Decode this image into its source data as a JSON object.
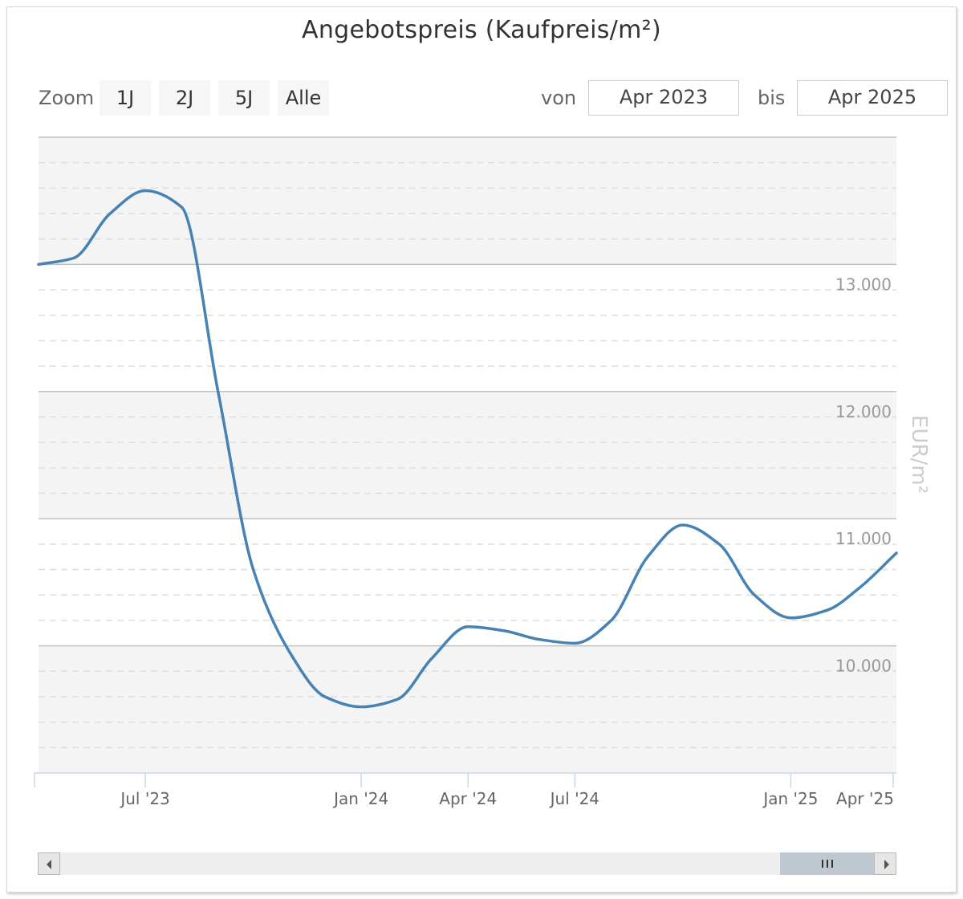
{
  "chart_data": {
    "type": "line",
    "title": "Angebotspreis (Kaufpreis/m²)",
    "ylabel": "EUR/m²",
    "xlabel": "",
    "x_range": [
      "2023-04-01",
      "2025-04-01"
    ],
    "ylim": [
      9000,
      14000
    ],
    "y_ticks": [
      10000,
      11000,
      12000,
      13000
    ],
    "y_tick_labels": [
      "10.000",
      "11.000",
      "12.000",
      "13.000"
    ],
    "x_ticks": [
      {
        "date": "2023-04-01",
        "label": ""
      },
      {
        "date": "2023-07-01",
        "label": "Jul '23"
      },
      {
        "date": "2024-01-01",
        "label": "Jan '24"
      },
      {
        "date": "2024-04-01",
        "label": "Apr '24"
      },
      {
        "date": "2024-07-01",
        "label": "Jul '24"
      },
      {
        "date": "2025-01-01",
        "label": "Jan '25"
      },
      {
        "date": "2025-04-01",
        "label": "Apr '25"
      }
    ],
    "alternate_bands": true,
    "minor_grid": true,
    "series": [
      {
        "color": "#4682b4",
        "points": [
          {
            "x": "2023-04-01",
            "y": 13000
          },
          {
            "x": "2023-05-01",
            "y": 13050
          },
          {
            "x": "2023-06-01",
            "y": 13400
          },
          {
            "x": "2023-07-01",
            "y": 13580
          },
          {
            "x": "2023-08-01",
            "y": 13450
          },
          {
            "x": "2023-09-01",
            "y": 12000
          },
          {
            "x": "2023-10-01",
            "y": 10600
          },
          {
            "x": "2023-11-01",
            "y": 9950
          },
          {
            "x": "2023-12-01",
            "y": 9600
          },
          {
            "x": "2024-01-01",
            "y": 9520
          },
          {
            "x": "2024-02-01",
            "y": 9580
          },
          {
            "x": "2024-03-01",
            "y": 9900
          },
          {
            "x": "2024-04-01",
            "y": 10150
          },
          {
            "x": "2024-05-01",
            "y": 10120
          },
          {
            "x": "2024-06-01",
            "y": 10050
          },
          {
            "x": "2024-07-01",
            "y": 10020
          },
          {
            "x": "2024-08-01",
            "y": 10200
          },
          {
            "x": "2024-09-01",
            "y": 10700
          },
          {
            "x": "2024-10-01",
            "y": 10950
          },
          {
            "x": "2024-11-01",
            "y": 10800
          },
          {
            "x": "2024-12-01",
            "y": 10400
          },
          {
            "x": "2025-01-01",
            "y": 10220
          },
          {
            "x": "2025-02-01",
            "y": 10280
          },
          {
            "x": "2025-03-01",
            "y": 10460
          },
          {
            "x": "2025-04-01",
            "y": 10730
          }
        ]
      }
    ]
  },
  "range_selector": {
    "zoom_label": "Zoom",
    "buttons": [
      "1J",
      "2J",
      "5J",
      "Alle"
    ],
    "from_label": "von",
    "from_value": "Apr 2023",
    "to_label": "bis",
    "to_value": "Apr 2025"
  },
  "colors": {
    "series": "#4682b4",
    "band": "#f4f4f4",
    "navigator_thumb": "#bfc8d1"
  }
}
